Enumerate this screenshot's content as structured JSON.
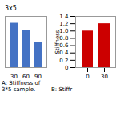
{
  "chart_data": [
    {
      "type": "bar",
      "title": "3x5",
      "categories": [
        30,
        60,
        90
      ],
      "values": [
        1.3,
        1.1,
        0.75
      ],
      "color": "#4472C4",
      "ylim": [
        0,
        1.5
      ],
      "tick_labels": "x",
      "caption": "A: Stiffness of 3*5 sample."
    },
    {
      "type": "bar",
      "categories": [
        0,
        30
      ],
      "values": [
        1.0,
        1.2
      ],
      "color": "#CC0000",
      "ylabel": "Stiffness",
      "ylim": [
        0,
        1.4
      ],
      "yticks": [
        0,
        0.2,
        0.4,
        0.6,
        0.8,
        {
          "value": 1.0,
          "label": "1.0"
        },
        1.2,
        1.4
      ],
      "caption": "B: Stiffr"
    }
  ]
}
